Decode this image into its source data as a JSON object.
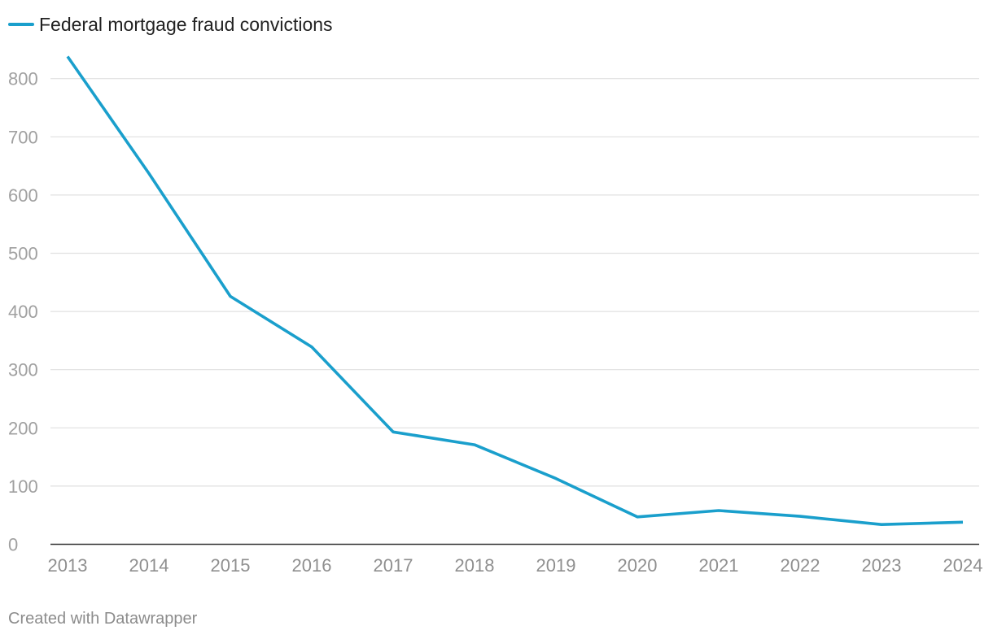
{
  "chart_data": {
    "type": "line",
    "title": "",
    "xlabel": "",
    "ylabel": "",
    "x": [
      "2013",
      "2014",
      "2015",
      "2016",
      "2017",
      "2018",
      "2019",
      "2020",
      "2021",
      "2022",
      "2023",
      "2024"
    ],
    "series": [
      {
        "name": "Federal mortgage fraud convictions",
        "color": "#1a9fcc",
        "values": [
          838,
          637,
          426,
          339,
          193,
          171,
          113,
          47,
          58,
          48,
          34,
          38
        ]
      }
    ],
    "ylim": [
      0,
      850
    ],
    "yticks": [
      0,
      100,
      200,
      300,
      400,
      500,
      600,
      700,
      800
    ],
    "grid": true,
    "legend_position": "top-left"
  },
  "footer": {
    "credit": "Created with Datawrapper"
  }
}
